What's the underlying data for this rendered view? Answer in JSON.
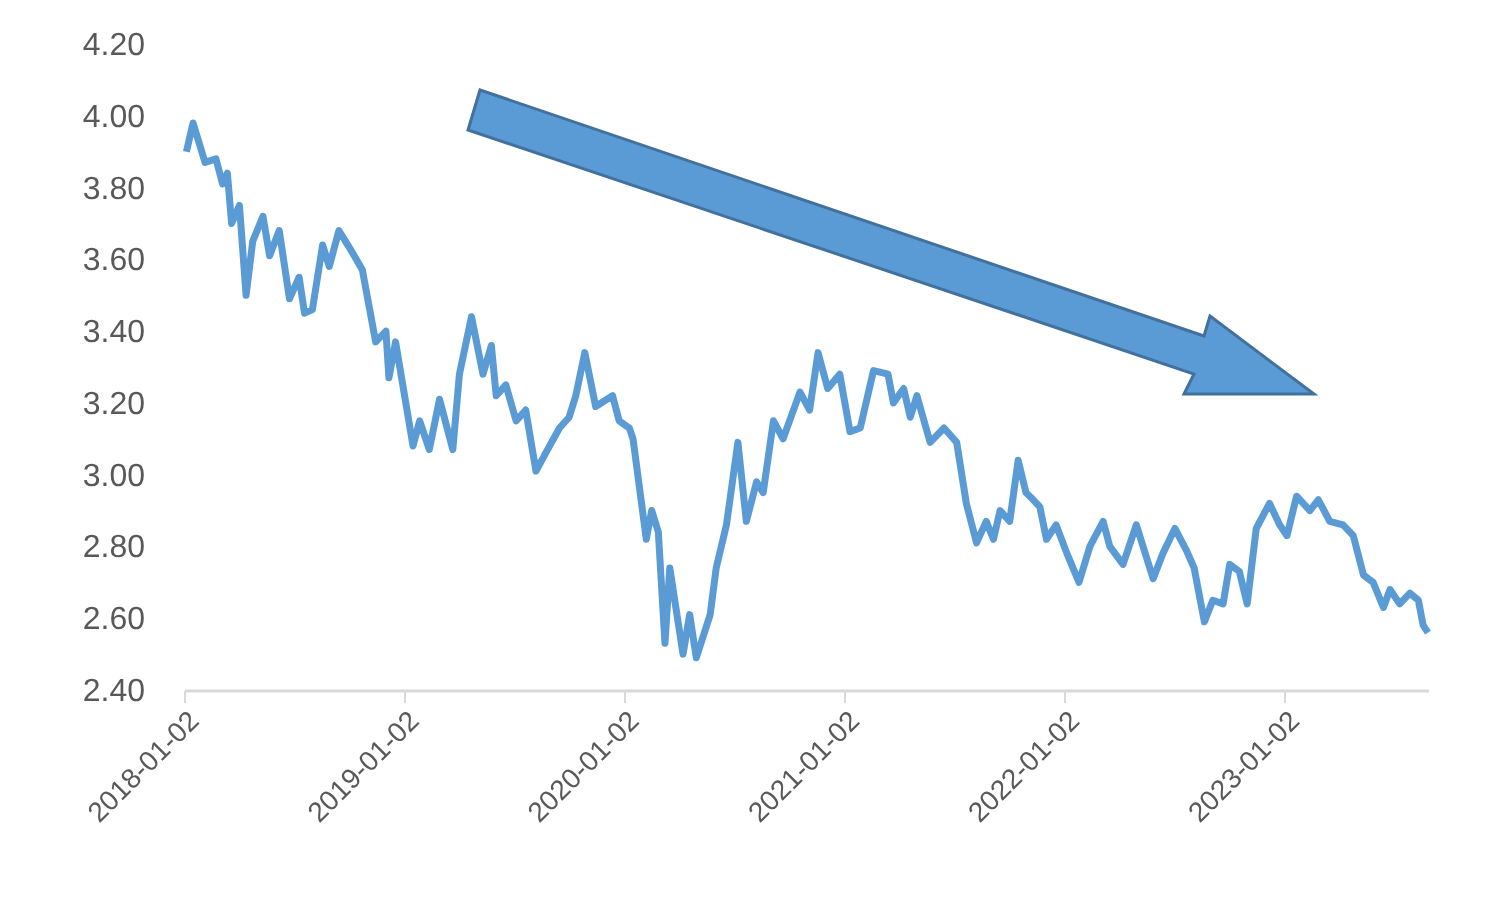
{
  "chart_data": {
    "type": "line",
    "grid": false,
    "xlim": [
      "2018-01-02",
      "2023-08-28"
    ],
    "xticks": [
      "2018-01-02",
      "2019-01-02",
      "2020-01-02",
      "2021-01-02",
      "2022-01-02",
      "2023-01-02"
    ],
    "ylim": [
      2.4,
      4.2
    ],
    "yticks": [
      {
        "value": 2.4,
        "label": "2.40"
      },
      {
        "value": 2.6,
        "label": "2.60"
      },
      {
        "value": 2.8,
        "label": "2.80"
      },
      {
        "value": 3.0,
        "label": "3.00"
      },
      {
        "value": 3.2,
        "label": "3.20"
      },
      {
        "value": 3.4,
        "label": "3.40"
      },
      {
        "value": 3.6,
        "label": "3.60"
      },
      {
        "value": 3.8,
        "label": "3.80"
      },
      {
        "value": 4.0,
        "label": "4.00"
      },
      {
        "value": 4.2,
        "label": "4.20"
      }
    ],
    "series": [
      {
        "color": "#5b9bd5",
        "x": [
          "2018-01-06",
          "2018-01-17",
          "2018-02-06",
          "2018-02-24",
          "2018-03-07",
          "2018-03-15",
          "2018-03-22",
          "2018-04-04",
          "2018-04-15",
          "2018-04-26",
          "2018-05-13",
          "2018-05-24",
          "2018-06-09",
          "2018-06-26",
          "2018-07-12",
          "2018-07-21",
          "2018-08-03",
          "2018-08-20",
          "2018-08-31",
          "2018-09-16",
          "2018-10-08",
          "2018-10-25",
          "2018-11-16",
          "2018-12-03",
          "2018-12-08",
          "2018-12-19",
          "2019-01-17",
          "2019-01-28",
          "2019-02-13",
          "2019-03-02",
          "2019-03-24",
          "2019-04-04",
          "2019-04-24",
          "2019-05-13",
          "2019-05-27",
          "2019-06-04",
          "2019-06-20",
          "2019-07-07",
          "2019-07-23",
          "2019-08-09",
          "2019-08-25",
          "2019-09-17",
          "2019-10-03",
          "2019-10-14",
          "2019-10-29",
          "2019-11-16",
          "2019-12-14",
          "2019-12-25",
          "2020-01-11",
          "2020-01-17",
          "2020-02-08",
          "2020-02-17",
          "2020-02-28",
          "2020-03-10",
          "2020-03-18",
          "2020-04-09",
          "2020-04-20",
          "2020-05-01",
          "2020-05-24",
          "2020-06-03",
          "2020-06-20",
          "2020-07-09",
          "2020-07-23",
          "2020-08-09",
          "2020-08-20",
          "2020-09-06",
          "2020-09-22",
          "2020-10-20",
          "2020-11-05",
          "2020-11-19",
          "2020-12-05",
          "2020-12-25",
          "2021-01-11",
          "2021-01-28",
          "2021-02-19",
          "2021-03-15",
          "2021-03-24",
          "2021-04-10",
          "2021-04-21",
          "2021-05-02",
          "2021-05-24",
          "2021-06-16",
          "2021-07-07",
          "2021-07-23",
          "2021-08-09",
          "2021-08-25",
          "2021-09-06",
          "2021-09-17",
          "2021-10-03",
          "2021-10-17",
          "2021-10-30",
          "2021-11-11",
          "2021-11-22",
          "2021-12-03",
          "2021-12-19",
          "2022-01-06",
          "2022-01-26",
          "2022-02-13",
          "2022-03-07",
          "2022-03-18",
          "2022-04-09",
          "2022-05-01",
          "2022-05-29",
          "2022-06-14",
          "2022-07-04",
          "2022-07-23",
          "2022-08-05",
          "2022-08-22",
          "2022-09-05",
          "2022-09-22",
          "2022-10-03",
          "2022-10-19",
          "2022-11-01",
          "2022-11-16",
          "2022-12-08",
          "2022-12-25",
          "2023-01-06",
          "2023-01-22",
          "2023-02-13",
          "2023-02-27",
          "2023-03-18",
          "2023-04-09",
          "2023-04-26",
          "2023-05-13",
          "2023-05-29",
          "2023-06-15",
          "2023-06-26",
          "2023-07-12",
          "2023-07-29",
          "2023-08-12",
          "2023-08-20",
          "2023-08-28"
        ],
        "values": [
          3.9,
          3.98,
          3.87,
          3.88,
          3.81,
          3.84,
          3.7,
          3.75,
          3.5,
          3.65,
          3.72,
          3.61,
          3.68,
          3.49,
          3.55,
          3.45,
          3.46,
          3.64,
          3.58,
          3.68,
          3.62,
          3.57,
          3.37,
          3.4,
          3.27,
          3.37,
          3.08,
          3.15,
          3.07,
          3.21,
          3.07,
          3.28,
          3.44,
          3.28,
          3.36,
          3.22,
          3.25,
          3.15,
          3.18,
          3.01,
          3.06,
          3.13,
          3.16,
          3.22,
          3.34,
          3.19,
          3.22,
          3.15,
          3.13,
          3.1,
          2.82,
          2.9,
          2.84,
          2.53,
          2.74,
          2.5,
          2.61,
          2.49,
          2.61,
          2.74,
          2.86,
          3.09,
          2.87,
          2.98,
          2.95,
          3.15,
          3.1,
          3.23,
          3.18,
          3.34,
          3.24,
          3.28,
          3.12,
          3.13,
          3.29,
          3.28,
          3.2,
          3.24,
          3.16,
          3.22,
          3.09,
          3.13,
          3.09,
          2.92,
          2.81,
          2.87,
          2.82,
          2.9,
          2.87,
          3.04,
          2.95,
          2.93,
          2.91,
          2.82,
          2.86,
          2.78,
          2.7,
          2.8,
          2.87,
          2.8,
          2.75,
          2.86,
          2.71,
          2.78,
          2.85,
          2.79,
          2.74,
          2.59,
          2.65,
          2.64,
          2.75,
          2.73,
          2.64,
          2.85,
          2.92,
          2.86,
          2.83,
          2.94,
          2.9,
          2.93,
          2.87,
          2.86,
          2.83,
          2.72,
          2.7,
          2.63,
          2.68,
          2.64,
          2.67,
          2.65,
          2.58,
          2.56
        ]
      }
    ]
  }
}
